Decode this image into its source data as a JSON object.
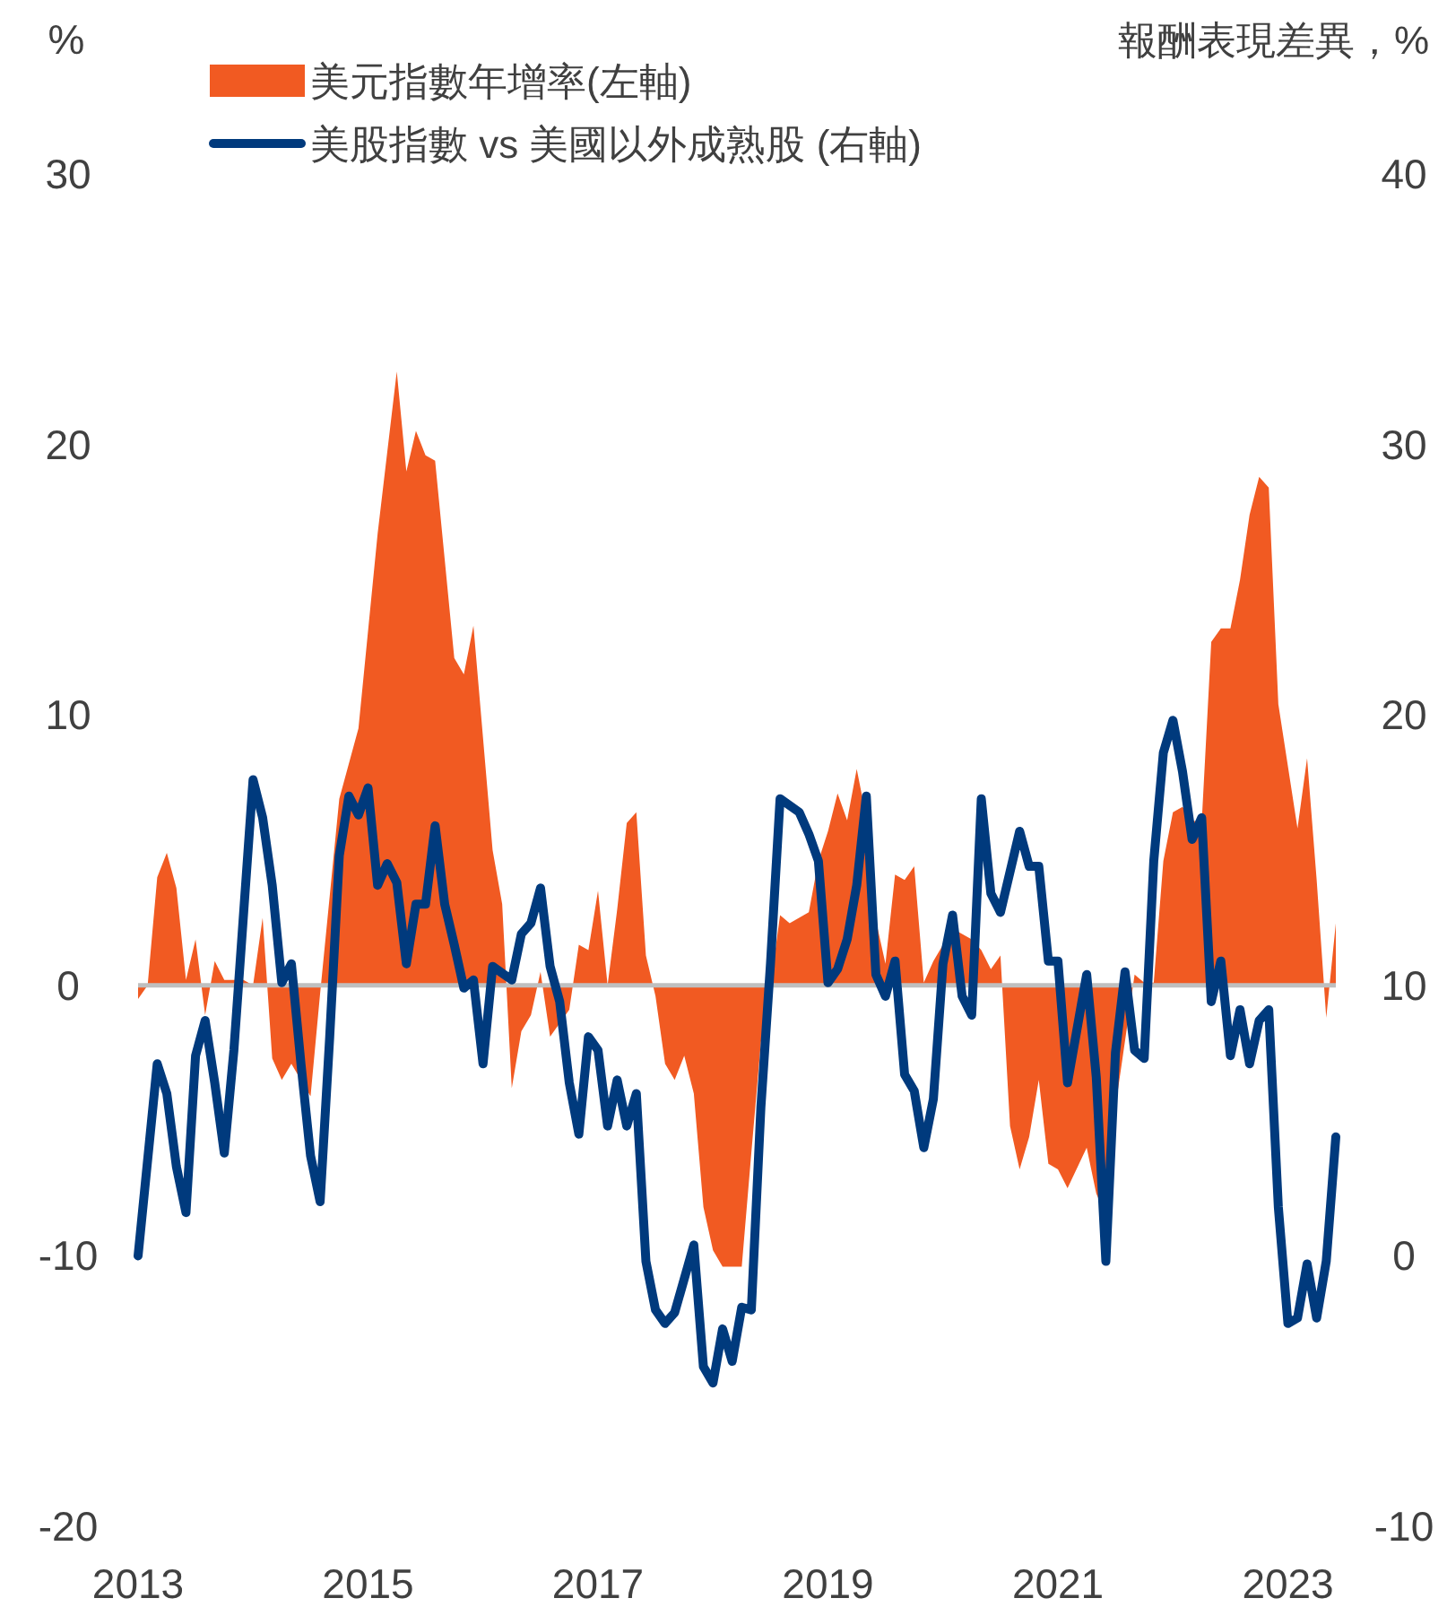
{
  "chart_data": {
    "type": "area",
    "ylabel": "%",
    "y2label": "報酬表現差異，%",
    "legend": "top",
    "xlim": [
      "2013-01",
      "2023-06"
    ],
    "xticks": [
      "2013",
      "2015",
      "2017",
      "2019",
      "2021",
      "2023"
    ],
    "ylim": [
      -20,
      30
    ],
    "yticks": [
      -20,
      -10,
      0,
      10,
      20,
      30
    ],
    "y2lim": [
      -10,
      40
    ],
    "y2ticks": [
      -10,
      0,
      10,
      20,
      30,
      40
    ],
    "ref_lines": [
      {
        "axis": "y",
        "value": 0,
        "color": "#bfbfbf"
      }
    ],
    "series": [
      {
        "name": "美元指數年增率(左軸)",
        "color": "#f15a22",
        "x": [
          "2013-01",
          "2013-02",
          "2013-03",
          "2013-04",
          "2013-05",
          "2013-06",
          "2013-07",
          "2013-08",
          "2013-09",
          "2013-10",
          "2013-12",
          "2014-01",
          "2014-02",
          "2014-03",
          "2014-04",
          "2014-05",
          "2014-07",
          "2014-08",
          "2014-10",
          "2014-12",
          "2015-02",
          "2015-04",
          "2015-05",
          "2015-06",
          "2015-07",
          "2015-08",
          "2015-10",
          "2015-11",
          "2015-12",
          "2016-02",
          "2016-03",
          "2016-04",
          "2016-05",
          "2016-06",
          "2016-07",
          "2016-08",
          "2016-10",
          "2016-11",
          "2016-12",
          "2017-01",
          "2017-02",
          "2017-03",
          "2017-04",
          "2017-05",
          "2017-06",
          "2017-07",
          "2017-08",
          "2017-09",
          "2017-10",
          "2017-11",
          "2017-12",
          "2018-01",
          "2018-02",
          "2018-04",
          "2018-05",
          "2018-06",
          "2018-07",
          "2018-08",
          "2018-09",
          "2018-11",
          "2018-12",
          "2019-01",
          "2019-02",
          "2019-03",
          "2019-04",
          "2019-05",
          "2019-06",
          "2019-07",
          "2019-08",
          "2019-09",
          "2019-10",
          "2019-11",
          "2019-12",
          "2020-02",
          "2020-04",
          "2020-05",
          "2020-06",
          "2020-07",
          "2020-08",
          "2020-09",
          "2020-10",
          "2020-11",
          "2020-12",
          "2021-01",
          "2021-02",
          "2021-04",
          "2021-05",
          "2021-06",
          "2021-07",
          "2021-09",
          "2021-10",
          "2021-11",
          "2021-12",
          "2022-01",
          "2022-02",
          "2022-03",
          "2022-04",
          "2022-05",
          "2022-06",
          "2022-07",
          "2022-08",
          "2022-09",
          "2022-10",
          "2022-11",
          "2022-12",
          "2023-02",
          "2023-03",
          "2023-04",
          "2023-05",
          "2023-06"
        ],
        "values": [
          -0.5,
          0,
          4.0,
          4.9,
          3.6,
          0.2,
          1.7,
          -1.1,
          0.9,
          0.2,
          0.2,
          0,
          2.5,
          -2.7,
          -3.5,
          -2.9,
          -4.1,
          -0.3,
          6.9,
          9.5,
          16.7,
          22.7,
          19.0,
          20.5,
          19.6,
          19.4,
          12.1,
          11.5,
          13.3,
          5.0,
          3.0,
          -3.8,
          -1.7,
          -1.1,
          0.5,
          -1.9,
          -0.9,
          1.5,
          1.3,
          3.5,
          0,
          2.8,
          6.0,
          6.4,
          1.1,
          -0.4,
          -2.9,
          -3.5,
          -2.6,
          -4.0,
          -8.2,
          -9.8,
          -10.4,
          -10.4,
          -6.2,
          -2.1,
          0,
          2.6,
          2.3,
          2.7,
          4.6,
          5.7,
          7.1,
          6.1,
          8.0,
          6.2,
          2.4,
          0.8,
          4.1,
          3.9,
          4.4,
          0.1,
          0.9,
          2.1,
          1.7,
          1.3,
          0.6,
          1.1,
          -5.2,
          -6.8,
          -5.6,
          -3.5,
          -6.6,
          -6.8,
          -7.5,
          -6.0,
          -7.7,
          -8.5,
          -4.5,
          0.4,
          0.1,
          0.1,
          4.6,
          6.4,
          6.6,
          6.1,
          6.0,
          12.7,
          13.2,
          13.2,
          15.0,
          17.4,
          18.8,
          18.4,
          10.4,
          5.8,
          8.4,
          3.9,
          -1.2,
          2.3
        ]
      },
      {
        "name": "美股指數 vs 美國以外成熟股 (右軸)",
        "type": "line",
        "axis": "y2",
        "color": "#003a7d",
        "x": [
          "2013-01",
          "2013-03",
          "2013-04",
          "2013-05",
          "2013-06",
          "2013-07",
          "2013-08",
          "2013-09",
          "2013-10",
          "2013-11",
          "2014-01",
          "2014-02",
          "2014-03",
          "2014-04",
          "2014-05",
          "2014-06",
          "2014-07",
          "2014-08",
          "2014-09",
          "2014-10",
          "2014-11",
          "2014-12",
          "2015-01",
          "2015-02",
          "2015-03",
          "2015-04",
          "2015-05",
          "2015-06",
          "2015-07",
          "2015-08",
          "2015-09",
          "2015-10",
          "2015-11",
          "2015-12",
          "2016-01",
          "2016-02",
          "2016-04",
          "2016-05",
          "2016-06",
          "2016-07",
          "2016-08",
          "2016-09",
          "2016-10",
          "2016-11",
          "2016-12",
          "2017-01",
          "2017-02",
          "2017-03",
          "2017-04",
          "2017-05",
          "2017-06",
          "2017-07",
          "2017-08",
          "2017-09",
          "2017-11",
          "2017-12",
          "2018-01",
          "2018-02",
          "2018-03",
          "2018-04",
          "2018-05",
          "2018-06",
          "2018-07",
          "2018-08",
          "2018-10",
          "2018-11",
          "2018-12",
          "2019-01",
          "2019-02",
          "2019-03",
          "2019-04",
          "2019-05",
          "2019-06",
          "2019-07",
          "2019-08",
          "2019-09",
          "2019-10",
          "2019-11",
          "2019-12",
          "2020-01",
          "2020-02",
          "2020-03",
          "2020-04",
          "2020-05",
          "2020-06",
          "2020-07",
          "2020-09",
          "2020-10",
          "2020-11",
          "2020-12",
          "2021-01",
          "2021-02",
          "2021-04",
          "2021-05",
          "2021-06",
          "2021-07",
          "2021-08",
          "2021-09",
          "2021-10",
          "2021-11",
          "2021-12",
          "2022-01",
          "2022-02",
          "2022-03",
          "2022-04",
          "2022-05",
          "2022-06",
          "2022-07",
          "2022-08",
          "2022-09",
          "2022-10",
          "2022-11",
          "2022-12",
          "2023-01",
          "2023-02",
          "2023-03",
          "2023-04",
          "2023-05",
          "2023-06"
        ],
        "values": [
          0.0,
          7.1,
          6.0,
          3.3,
          1.6,
          7.4,
          8.7,
          6.4,
          3.8,
          7.6,
          17.6,
          16.2,
          13.7,
          10.1,
          10.8,
          7.1,
          3.7,
          2.0,
          8.1,
          14.8,
          17.0,
          16.3,
          17.3,
          13.7,
          14.5,
          13.8,
          10.8,
          13.0,
          13.0,
          15.9,
          13.0,
          11.5,
          9.9,
          10.2,
          7.1,
          10.7,
          10.2,
          11.9,
          12.3,
          13.6,
          10.7,
          9.4,
          6.4,
          4.5,
          8.1,
          7.6,
          4.8,
          6.5,
          4.8,
          6.0,
          -0.2,
          -2.0,
          -2.5,
          -2.1,
          0.4,
          -4.1,
          -4.7,
          -2.7,
          -3.9,
          -1.9,
          -2.0,
          5.5,
          10.8,
          16.9,
          16.4,
          15.6,
          14.6,
          10.1,
          10.6,
          11.7,
          13.7,
          17.0,
          10.4,
          9.6,
          10.9,
          6.7,
          6.1,
          4.0,
          5.8,
          10.8,
          12.6,
          9.6,
          8.9,
          16.9,
          13.4,
          12.7,
          15.7,
          14.4,
          14.4,
          10.9,
          10.9,
          6.4,
          10.4,
          6.6,
          -0.2,
          7.5,
          10.5,
          7.6,
          7.3,
          14.6,
          18.6,
          19.8,
          17.9,
          15.4,
          16.2,
          9.4,
          10.9,
          7.4,
          9.1,
          7.1,
          8.7,
          9.1,
          1.8,
          -2.5,
          -2.3,
          -0.3,
          -2.3,
          -0.2,
          4.4
        ]
      }
    ]
  }
}
